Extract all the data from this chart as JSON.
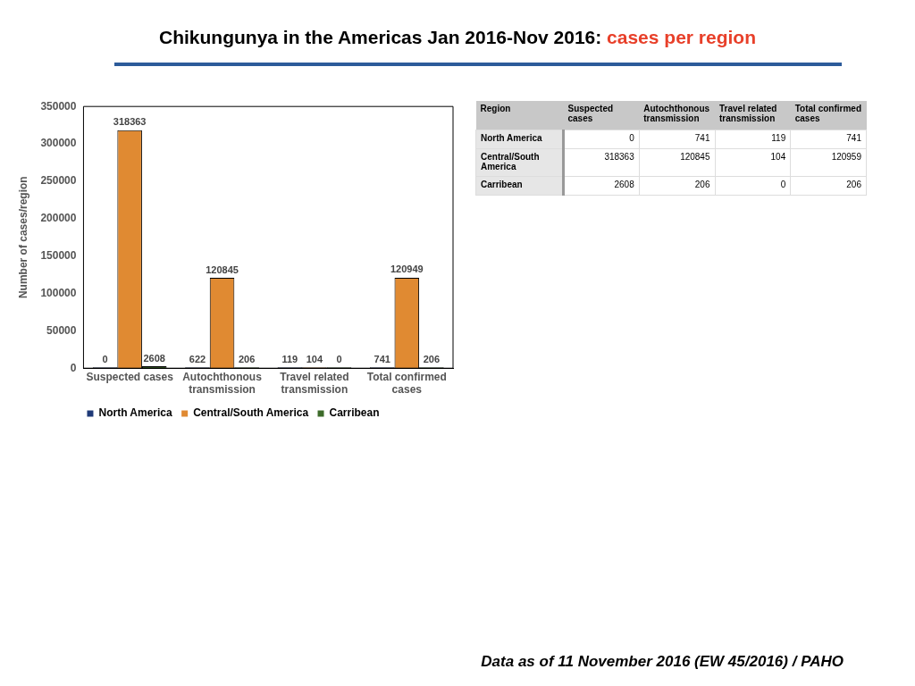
{
  "chart_data": [
    {
      "type": "bar",
      "title": "Chikungunya in the Americas Jan 2016-Nov 2016: ",
      "ylabel": "Number of cases/region",
      "categories": [
        "Suspected cases",
        "Autochthonous transmission",
        "Travel related transmission",
        "Total confirmed cases"
      ],
      "series": [
        {
          "name": "North America",
          "color": "#1f3a78",
          "values": [
            0,
            622,
            119,
            741
          ]
        },
        {
          "name": "Central/South America",
          "color": "#e08a32",
          "values": [
            318363,
            120845,
            104,
            120949
          ]
        },
        {
          "name": "Carribean",
          "color": "#3d6b2a",
          "values": [
            2608,
            206,
            0,
            206
          ]
        }
      ],
      "ylim": [
        0,
        350000
      ],
      "yticks": [
        0,
        50000,
        100000,
        150000,
        200000,
        250000,
        300000,
        350000
      ],
      "grid": false,
      "legend": "bottom",
      "data_labels": true,
      "annotations": [
        "Data as of 11 November  2016 (EW 45/2016) / PAHO"
      ]
    },
    {
      "type": "heatmap",
      "title": "cases per region",
      "ylabel": "Region",
      "data_labels": true,
      "categories": [
        "Suspected cases",
        "Autochthonous transmission",
        "Travel related transmission",
        "Total confirmed cases"
      ],
      "y_categories": [
        "North America",
        "Central/South America",
        "Carribean"
      ],
      "cells": [
        [
          0,
          741,
          119,
          741
        ],
        [
          318363,
          120845,
          104,
          120959
        ],
        [
          2608,
          206,
          0,
          206
        ]
      ]
    }
  ]
}
